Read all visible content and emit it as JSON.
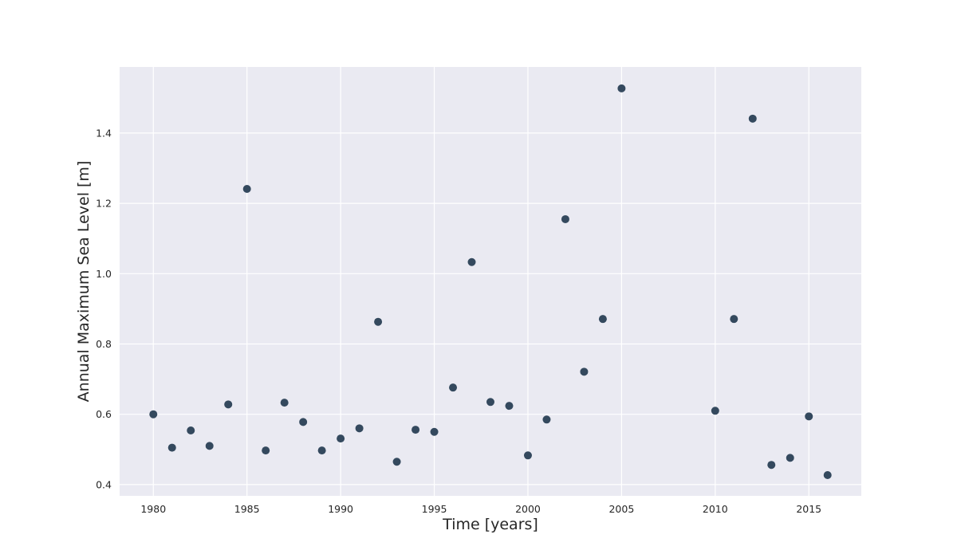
{
  "chart_data": {
    "type": "scatter",
    "title": "",
    "xlabel": "Time [years]",
    "ylabel": "Annual Maximum Sea Level [m]",
    "xlim": [
      1978.2,
      2017.8
    ],
    "ylim": [
      0.368,
      1.588
    ],
    "xticks": [
      1980,
      1985,
      1990,
      1995,
      2000,
      2005,
      2010,
      2015
    ],
    "yticks": [
      0.4,
      0.6,
      0.8,
      1.0,
      1.2,
      1.4
    ],
    "xtick_labels": [
      "1980",
      "1985",
      "1990",
      "1995",
      "2000",
      "2005",
      "2010",
      "2015"
    ],
    "ytick_labels": [
      "0.4",
      "0.6",
      "0.8",
      "1.0",
      "1.2",
      "1.4"
    ],
    "grid": true,
    "colors": {
      "marker": "#34495e",
      "plot_background": "#eaeaf2",
      "grid": "#ffffff"
    },
    "points": [
      {
        "x": 1980,
        "y": 0.6
      },
      {
        "x": 1981,
        "y": 0.505
      },
      {
        "x": 1982,
        "y": 0.554
      },
      {
        "x": 1983,
        "y": 0.51
      },
      {
        "x": 1984,
        "y": 0.628
      },
      {
        "x": 1985,
        "y": 1.241
      },
      {
        "x": 1986,
        "y": 0.497
      },
      {
        "x": 1987,
        "y": 0.633
      },
      {
        "x": 1988,
        "y": 0.578
      },
      {
        "x": 1989,
        "y": 0.497
      },
      {
        "x": 1990,
        "y": 0.531
      },
      {
        "x": 1991,
        "y": 0.56
      },
      {
        "x": 1992,
        "y": 0.863
      },
      {
        "x": 1993,
        "y": 0.465
      },
      {
        "x": 1994,
        "y": 0.556
      },
      {
        "x": 1995,
        "y": 0.55
      },
      {
        "x": 1996,
        "y": 0.676
      },
      {
        "x": 1997,
        "y": 1.033
      },
      {
        "x": 1998,
        "y": 0.635
      },
      {
        "x": 1999,
        "y": 0.624
      },
      {
        "x": 2000,
        "y": 0.483
      },
      {
        "x": 2001,
        "y": 0.585
      },
      {
        "x": 2002,
        "y": 1.155
      },
      {
        "x": 2003,
        "y": 0.721
      },
      {
        "x": 2004,
        "y": 0.871
      },
      {
        "x": 2005,
        "y": 1.527
      },
      {
        "x": 2010,
        "y": 0.61
      },
      {
        "x": 2011,
        "y": 0.871
      },
      {
        "x": 2012,
        "y": 1.441
      },
      {
        "x": 2013,
        "y": 0.456
      },
      {
        "x": 2014,
        "y": 0.476
      },
      {
        "x": 2015,
        "y": 0.594
      },
      {
        "x": 2016,
        "y": 0.427
      }
    ]
  }
}
